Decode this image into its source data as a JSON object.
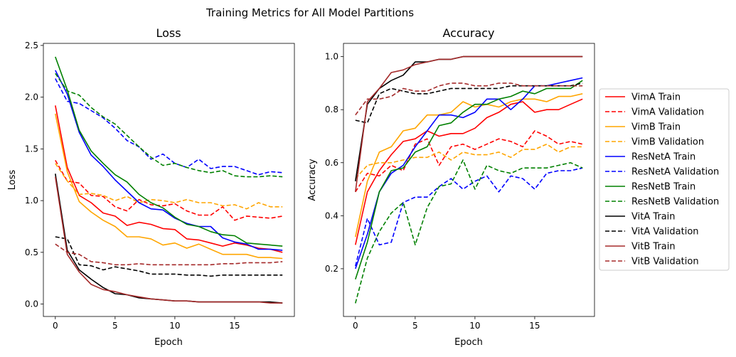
{
  "title": "Training Metrics for All Model Partitions",
  "chart_data": [
    {
      "type": "line",
      "title": "Loss",
      "xlabel": "Epoch",
      "ylabel": "Loss",
      "xlim": [
        -1,
        20
      ],
      "ylim": [
        -0.12,
        2.52
      ],
      "xticks": [
        0,
        5,
        10,
        15
      ],
      "yticks": [
        0.0,
        0.5,
        1.0,
        1.5,
        2.0,
        2.5
      ],
      "ytick_labels": [
        "0.0",
        "0.5",
        "1.0",
        "1.5",
        "2.0",
        "2.5"
      ],
      "x": [
        0,
        1,
        2,
        3,
        4,
        5,
        6,
        7,
        8,
        9,
        10,
        11,
        12,
        13,
        14,
        15,
        16,
        17,
        18,
        19
      ],
      "series": [
        {
          "name": "VimA Train",
          "color": "#ff0000",
          "dash": false,
          "values": [
            1.92,
            1.32,
            1.05,
            0.98,
            0.88,
            0.85,
            0.76,
            0.79,
            0.77,
            0.73,
            0.72,
            0.63,
            0.62,
            0.59,
            0.56,
            0.59,
            0.57,
            0.54,
            0.53,
            0.5
          ]
        },
        {
          "name": "VimA Validation",
          "color": "#ff0000",
          "dash": true,
          "values": [
            1.39,
            1.19,
            1.17,
            1.05,
            1.04,
            0.94,
            0.9,
            1.01,
            0.96,
            0.95,
            0.97,
            0.9,
            0.86,
            0.86,
            0.94,
            0.81,
            0.85,
            0.84,
            0.83,
            0.85
          ]
        },
        {
          "name": "VimB Train",
          "color": "#ffa500",
          "dash": false,
          "values": [
            1.84,
            1.28,
            0.99,
            0.89,
            0.81,
            0.75,
            0.65,
            0.65,
            0.63,
            0.57,
            0.59,
            0.54,
            0.58,
            0.53,
            0.48,
            0.48,
            0.48,
            0.45,
            0.45,
            0.44
          ]
        },
        {
          "name": "VimB Validation",
          "color": "#ffa500",
          "dash": true,
          "values": [
            1.36,
            1.19,
            1.06,
            1.07,
            1.05,
            1.0,
            1.04,
            0.98,
            1.01,
            1.0,
            0.98,
            1.01,
            0.98,
            0.98,
            0.95,
            0.96,
            0.92,
            0.98,
            0.94,
            0.94
          ]
        },
        {
          "name": "ResNetA Train",
          "color": "#0000ff",
          "dash": false,
          "values": [
            2.26,
            2.03,
            1.66,
            1.44,
            1.33,
            1.2,
            1.09,
            0.98,
            0.92,
            0.91,
            0.83,
            0.78,
            0.75,
            0.75,
            0.64,
            0.6,
            0.58,
            0.53,
            0.53,
            0.52
          ]
        },
        {
          "name": "ResNetA Validation",
          "color": "#0000ff",
          "dash": true,
          "values": [
            2.18,
            1.96,
            1.94,
            1.87,
            1.8,
            1.7,
            1.58,
            1.52,
            1.4,
            1.45,
            1.36,
            1.32,
            1.4,
            1.31,
            1.33,
            1.33,
            1.29,
            1.25,
            1.28,
            1.27
          ]
        },
        {
          "name": "ResNetB Train",
          "color": "#008000",
          "dash": false,
          "values": [
            2.39,
            2.07,
            1.68,
            1.48,
            1.36,
            1.25,
            1.18,
            1.06,
            0.98,
            0.93,
            0.84,
            0.77,
            0.75,
            0.7,
            0.67,
            0.66,
            0.59,
            0.58,
            0.57,
            0.56
          ]
        },
        {
          "name": "ResNetB Validation",
          "color": "#008000",
          "dash": true,
          "values": [
            2.23,
            2.06,
            2.02,
            1.9,
            1.81,
            1.74,
            1.63,
            1.52,
            1.42,
            1.34,
            1.36,
            1.32,
            1.29,
            1.27,
            1.29,
            1.24,
            1.23,
            1.23,
            1.24,
            1.23
          ]
        },
        {
          "name": "VitA Train",
          "color": "#000000",
          "dash": false,
          "values": [
            1.26,
            0.52,
            0.33,
            0.24,
            0.16,
            0.1,
            0.09,
            0.06,
            0.05,
            0.04,
            0.03,
            0.03,
            0.02,
            0.02,
            0.02,
            0.02,
            0.02,
            0.02,
            0.02,
            0.01
          ]
        },
        {
          "name": "VitA Validation",
          "color": "#000000",
          "dash": true,
          "values": [
            0.65,
            0.63,
            0.38,
            0.37,
            0.33,
            0.36,
            0.34,
            0.32,
            0.29,
            0.29,
            0.29,
            0.28,
            0.28,
            0.27,
            0.28,
            0.28,
            0.28,
            0.28,
            0.28,
            0.28
          ]
        },
        {
          "name": "VitB Train",
          "color": "#a52a2a",
          "dash": false,
          "values": [
            1.23,
            0.48,
            0.31,
            0.19,
            0.14,
            0.12,
            0.09,
            0.07,
            0.05,
            0.04,
            0.03,
            0.03,
            0.02,
            0.02,
            0.02,
            0.02,
            0.02,
            0.02,
            0.01,
            0.01
          ]
        },
        {
          "name": "VitB Validation",
          "color": "#a52a2a",
          "dash": true,
          "values": [
            0.58,
            0.5,
            0.48,
            0.41,
            0.4,
            0.38,
            0.38,
            0.39,
            0.38,
            0.38,
            0.38,
            0.38,
            0.38,
            0.38,
            0.39,
            0.39,
            0.4,
            0.4,
            0.4,
            0.41
          ]
        }
      ]
    },
    {
      "type": "line",
      "title": "Accuracy",
      "xlabel": "Epoch",
      "ylabel": "Accuracy",
      "xlim": [
        -1,
        20
      ],
      "ylim": [
        0.02,
        1.05
      ],
      "xticks": [
        0,
        5,
        10,
        15
      ],
      "yticks": [
        0.2,
        0.4,
        0.6,
        0.8,
        1.0
      ],
      "ytick_labels": [
        "0.2",
        "0.4",
        "0.6",
        "0.8",
        "1.0"
      ],
      "x": [
        0,
        1,
        2,
        3,
        4,
        5,
        6,
        7,
        8,
        9,
        10,
        11,
        12,
        13,
        14,
        15,
        16,
        17,
        18,
        19
      ],
      "series": [
        {
          "name": "VimA Train",
          "color": "#ff0000",
          "dash": false,
          "values": [
            0.29,
            0.49,
            0.57,
            0.63,
            0.68,
            0.69,
            0.72,
            0.7,
            0.71,
            0.71,
            0.73,
            0.77,
            0.79,
            0.82,
            0.83,
            0.79,
            0.8,
            0.8,
            0.82,
            0.84
          ]
        },
        {
          "name": "VimA Validation",
          "color": "#ff0000",
          "dash": true,
          "values": [
            0.49,
            0.56,
            0.55,
            0.59,
            0.57,
            0.67,
            0.69,
            0.59,
            0.66,
            0.67,
            0.65,
            0.67,
            0.69,
            0.68,
            0.66,
            0.72,
            0.7,
            0.67,
            0.68,
            0.67
          ]
        },
        {
          "name": "VimB Train",
          "color": "#ffa500",
          "dash": false,
          "values": [
            0.32,
            0.53,
            0.64,
            0.66,
            0.72,
            0.73,
            0.78,
            0.78,
            0.79,
            0.83,
            0.81,
            0.82,
            0.81,
            0.83,
            0.84,
            0.84,
            0.83,
            0.85,
            0.85,
            0.86
          ]
        },
        {
          "name": "VimB Validation",
          "color": "#ffa500",
          "dash": true,
          "values": [
            0.54,
            0.59,
            0.6,
            0.6,
            0.61,
            0.62,
            0.62,
            0.64,
            0.61,
            0.64,
            0.63,
            0.63,
            0.64,
            0.62,
            0.65,
            0.65,
            0.67,
            0.64,
            0.66,
            0.66
          ]
        },
        {
          "name": "ResNetA Train",
          "color": "#0000ff",
          "dash": false,
          "values": [
            0.2,
            0.33,
            0.49,
            0.56,
            0.59,
            0.66,
            0.72,
            0.78,
            0.78,
            0.77,
            0.79,
            0.84,
            0.84,
            0.8,
            0.84,
            0.89,
            0.89,
            0.9,
            0.91,
            0.92
          ]
        },
        {
          "name": "ResNetA Validation",
          "color": "#0000ff",
          "dash": true,
          "values": [
            0.21,
            0.39,
            0.29,
            0.3,
            0.45,
            0.47,
            0.47,
            0.51,
            0.54,
            0.5,
            0.53,
            0.55,
            0.49,
            0.55,
            0.54,
            0.5,
            0.56,
            0.57,
            0.57,
            0.58
          ]
        },
        {
          "name": "ResNetB Train",
          "color": "#008000",
          "dash": false,
          "values": [
            0.16,
            0.3,
            0.49,
            0.57,
            0.58,
            0.64,
            0.66,
            0.74,
            0.75,
            0.79,
            0.82,
            0.82,
            0.84,
            0.85,
            0.87,
            0.86,
            0.88,
            0.88,
            0.88,
            0.91
          ]
        },
        {
          "name": "ResNetB Validation",
          "color": "#008000",
          "dash": true,
          "values": [
            0.07,
            0.24,
            0.34,
            0.41,
            0.45,
            0.29,
            0.43,
            0.51,
            0.52,
            0.61,
            0.5,
            0.59,
            0.57,
            0.56,
            0.58,
            0.58,
            0.58,
            0.59,
            0.6,
            0.58
          ]
        },
        {
          "name": "VitA Train",
          "color": "#000000",
          "dash": false,
          "values": [
            0.53,
            0.82,
            0.88,
            0.91,
            0.93,
            0.98,
            0.98,
            0.99,
            0.99,
            1.0,
            1.0,
            1.0,
            1.0,
            1.0,
            1.0,
            1.0,
            1.0,
            1.0,
            1.0,
            1.0
          ]
        },
        {
          "name": "VitA Validation",
          "color": "#000000",
          "dash": true,
          "values": [
            0.76,
            0.75,
            0.86,
            0.88,
            0.87,
            0.86,
            0.86,
            0.87,
            0.88,
            0.88,
            0.88,
            0.88,
            0.88,
            0.89,
            0.89,
            0.89,
            0.89,
            0.89,
            0.89,
            0.9
          ]
        },
        {
          "name": "VitB Train",
          "color": "#a52a2a",
          "dash": false,
          "values": [
            0.49,
            0.83,
            0.88,
            0.94,
            0.95,
            0.97,
            0.98,
            0.99,
            0.99,
            1.0,
            1.0,
            1.0,
            1.0,
            1.0,
            1.0,
            1.0,
            1.0,
            1.0,
            1.0,
            1.0
          ]
        },
        {
          "name": "VitB Validation",
          "color": "#a52a2a",
          "dash": true,
          "values": [
            0.78,
            0.84,
            0.84,
            0.85,
            0.88,
            0.87,
            0.87,
            0.89,
            0.9,
            0.9,
            0.89,
            0.89,
            0.9,
            0.9,
            0.89,
            0.89,
            0.89,
            0.89,
            0.89,
            0.89
          ]
        }
      ]
    }
  ],
  "legend": {
    "placement": "right",
    "entries": [
      {
        "label": "VimA Train",
        "color": "#ff0000",
        "dash": false
      },
      {
        "label": "VimA Validation",
        "color": "#ff0000",
        "dash": true
      },
      {
        "label": "VimB Train",
        "color": "#ffa500",
        "dash": false
      },
      {
        "label": "VimB Validation",
        "color": "#ffa500",
        "dash": true
      },
      {
        "label": "ResNetA Train",
        "color": "#0000ff",
        "dash": false
      },
      {
        "label": "ResNetA Validation",
        "color": "#0000ff",
        "dash": true
      },
      {
        "label": "ResNetB Train",
        "color": "#008000",
        "dash": false
      },
      {
        "label": "ResNetB Validation",
        "color": "#008000",
        "dash": true
      },
      {
        "label": "VitA Train",
        "color": "#000000",
        "dash": false
      },
      {
        "label": "VitA Validation",
        "color": "#000000",
        "dash": true
      },
      {
        "label": "VitB Train",
        "color": "#a52a2a",
        "dash": false
      },
      {
        "label": "VitB Validation",
        "color": "#a52a2a",
        "dash": true
      }
    ]
  }
}
